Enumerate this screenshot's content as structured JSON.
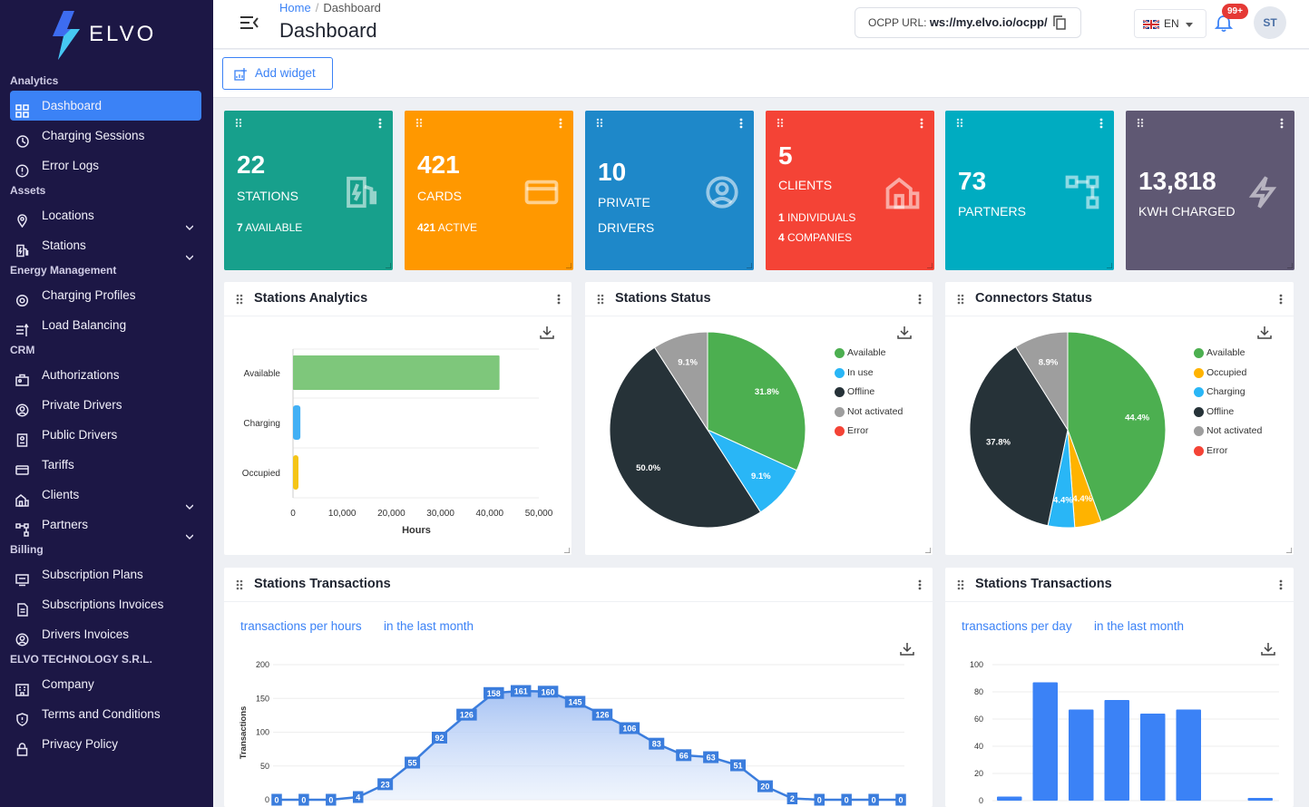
{
  "brand": {
    "name": "ELVO"
  },
  "sidebar": {
    "sections": [
      {
        "title": "Analytics",
        "items": [
          {
            "label": "Dashboard",
            "icon": "grid-icon",
            "active": true
          },
          {
            "label": "Charging Sessions",
            "icon": "history-icon"
          },
          {
            "label": "Error Logs",
            "icon": "alert-circle-icon"
          }
        ]
      },
      {
        "title": "Assets",
        "items": [
          {
            "label": "Locations",
            "icon": "map-pin-icon",
            "expand": true
          },
          {
            "label": "Stations",
            "icon": "ev-station-icon",
            "expand": true
          }
        ]
      },
      {
        "title": "Energy Management",
        "items": [
          {
            "label": "Charging Profiles",
            "icon": "gear-icon"
          },
          {
            "label": "Load Balancing",
            "icon": "balance-icon"
          }
        ]
      },
      {
        "title": "CRM",
        "items": [
          {
            "label": "Authorizations",
            "icon": "id-card-icon"
          },
          {
            "label": "Private Drivers",
            "icon": "user-circle-icon"
          },
          {
            "label": "Public Drivers",
            "icon": "badge-icon"
          },
          {
            "label": "Tariffs",
            "icon": "card-icon"
          },
          {
            "label": "Clients",
            "icon": "building-icon",
            "expand": true
          },
          {
            "label": "Partners",
            "icon": "network-icon",
            "expand": true
          }
        ]
      },
      {
        "title": "Billing",
        "items": [
          {
            "label": "Subscription Plans",
            "icon": "monitor-icon"
          },
          {
            "label": "Subscriptions Invoices",
            "icon": "document-icon"
          },
          {
            "label": "Drivers Invoices",
            "icon": "user-circle-icon"
          }
        ]
      },
      {
        "title": "ELVO TECHNOLOGY S.R.L.",
        "items": [
          {
            "label": "Company",
            "icon": "company-icon"
          },
          {
            "label": "Terms and Conditions",
            "icon": "shield-icon"
          },
          {
            "label": "Privacy Policy",
            "icon": "lock-icon"
          }
        ]
      }
    ]
  },
  "header": {
    "breadcrumb_home": "Home",
    "breadcrumb_sep": "/",
    "breadcrumb_current": "Dashboard",
    "title": "Dashboard",
    "ocpp_label": "OCPP URL:",
    "ocpp_url": "ws://my.elvo.io/ocpp/",
    "lang": "EN",
    "notifications": "99+",
    "avatar": "ST"
  },
  "toolbar": {
    "add_widget": "Add widget"
  },
  "kpis": [
    {
      "number": "22",
      "label": "STATIONS",
      "sub_bold": "7",
      "sub": " AVAILABLE",
      "color": "#17a08c",
      "icon": "ev-station-icon"
    },
    {
      "number": "421",
      "label": "CARDS",
      "sub_bold": "421",
      "sub": " ACTIVE",
      "color": "#ff9800",
      "icon": "card-icon"
    },
    {
      "number": "10",
      "label": "PRIVATE",
      "label2": "DRIVERS",
      "color": "#1e88c9",
      "icon": "user-circle-icon"
    },
    {
      "number": "5",
      "label": "CLIENTS",
      "sub_bold": "1",
      "sub": " INDIVIDUALS",
      "sub2_bold": "4",
      "sub2": " COMPANIES",
      "color": "#f44336",
      "icon": "building-icon"
    },
    {
      "number": "73",
      "label": "PARTNERS",
      "color": "#00acc1",
      "icon": "network-icon"
    },
    {
      "number": "13,818",
      "label": "KWH CHARGED",
      "color": "#5f5873",
      "icon": "bolt-icon"
    }
  ],
  "panels": {
    "stations_analytics": {
      "title": "Stations Analytics"
    },
    "stations_status": {
      "title": "Stations Status"
    },
    "connectors_status": {
      "title": "Connectors Status"
    },
    "transactions_hours": {
      "title": "Stations Transactions",
      "tab1": "transactions per hours",
      "tab2": "in the last month"
    },
    "transactions_day": {
      "title": "Stations Transactions",
      "tab1": "transactions per day",
      "tab2": "in the last month"
    }
  },
  "chart_data": [
    {
      "type": "bar",
      "orientation": "horizontal",
      "categories": [
        "Available",
        "Charging",
        "Occupied"
      ],
      "values": [
        42000,
        1500,
        900
      ],
      "colors": [
        "#7ec77b",
        "#42b0f5",
        "#f5c518"
      ],
      "xlabel": "Hours",
      "xlim": [
        0,
        50000
      ],
      "xticks": [
        "0",
        "10,000",
        "20,000",
        "30,000",
        "40,000",
        "50,000"
      ]
    },
    {
      "type": "pie",
      "labels": [
        "Available",
        "In use",
        "Offline",
        "Not activated",
        "Error"
      ],
      "values": [
        31.8,
        9.1,
        50.0,
        9.1,
        0
      ],
      "value_labels": [
        "31.8%",
        "9.1%",
        "50.0%",
        "9.1%",
        ""
      ],
      "colors": [
        "#4caf50",
        "#29b6f6",
        "#263238",
        "#9e9e9e",
        "#f44336"
      ]
    },
    {
      "type": "pie",
      "labels": [
        "Available",
        "Occupied",
        "Charging",
        "Offline",
        "Not activated",
        "Error"
      ],
      "values": [
        44.4,
        4.4,
        4.4,
        37.8,
        8.9,
        0
      ],
      "value_labels": [
        "44.4%",
        "4.4%",
        "4.4%",
        "37.8%",
        "8.9%",
        ""
      ],
      "colors": [
        "#4caf50",
        "#ffb300",
        "#29b6f6",
        "#263238",
        "#9e9e9e",
        "#f44336"
      ]
    },
    {
      "type": "area",
      "ylabel": "Transactions",
      "ylim": [
        0,
        200
      ],
      "yticks": [
        "0",
        "50",
        "100",
        "150",
        "200"
      ],
      "values": [
        0,
        0,
        0,
        4,
        23,
        55,
        92,
        126,
        158,
        161,
        160,
        145,
        126,
        106,
        83,
        66,
        63,
        51,
        20,
        2,
        0,
        0,
        0,
        0
      ],
      "color": "#3b7ddd"
    },
    {
      "type": "bar",
      "ylim": [
        0,
        100
      ],
      "yticks": [
        "0",
        "20",
        "40",
        "60",
        "80",
        "100"
      ],
      "values": [
        3,
        87,
        67,
        74,
        64,
        67,
        0,
        2
      ],
      "color": "#3b82f6"
    }
  ]
}
